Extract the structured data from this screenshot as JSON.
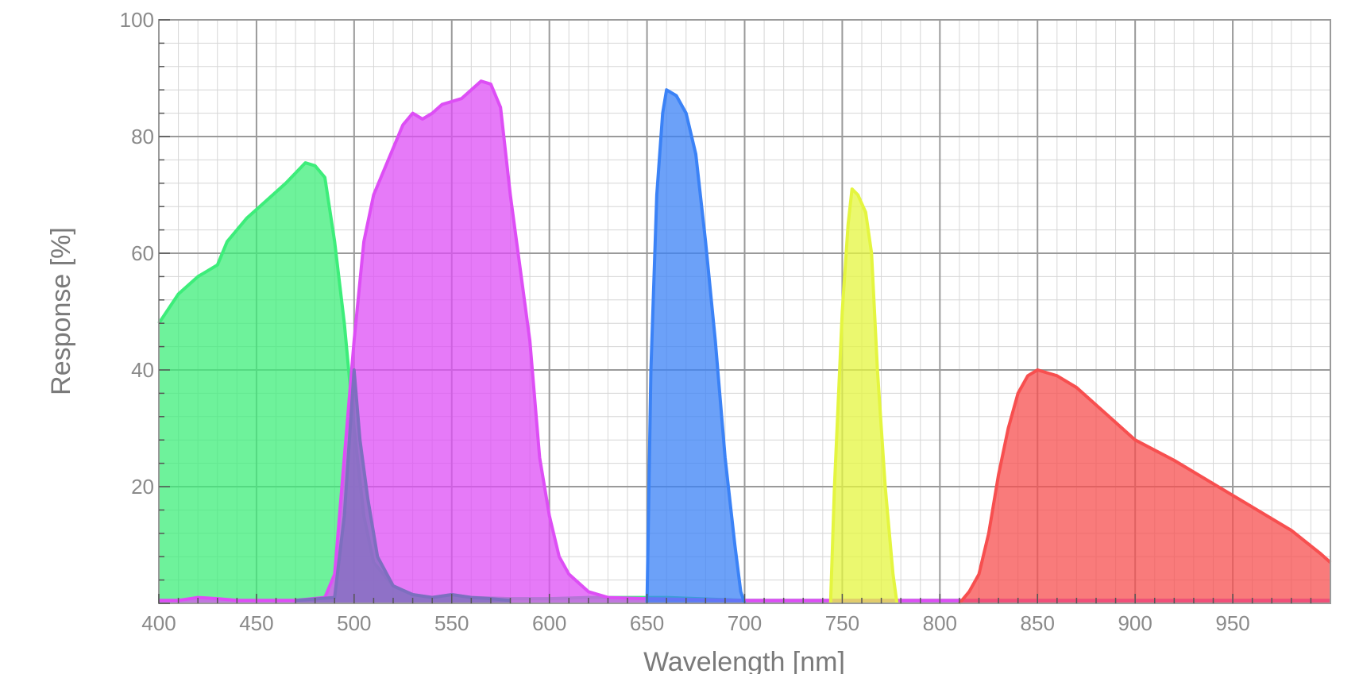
{
  "chart_data": {
    "type": "area",
    "title": "",
    "xlabel": "Wavelength [nm]",
    "ylabel": "Response [%]",
    "xlim": [
      400,
      1000
    ],
    "ylim": [
      0,
      100
    ],
    "x_ticks": [
      400,
      450,
      500,
      550,
      600,
      650,
      700,
      750,
      800,
      850,
      900,
      950
    ],
    "y_ticks": [
      20,
      40,
      60,
      80,
      100
    ],
    "grid": true,
    "legend": "none",
    "series": [
      {
        "color": "#3ded7a",
        "points": [
          [
            400,
            48
          ],
          [
            410,
            53
          ],
          [
            420,
            56
          ],
          [
            430,
            58
          ],
          [
            435,
            62
          ],
          [
            445,
            66
          ],
          [
            455,
            69
          ],
          [
            465,
            72
          ],
          [
            475,
            75.5
          ],
          [
            480,
            75
          ],
          [
            485,
            73
          ],
          [
            490,
            62
          ],
          [
            495,
            48
          ],
          [
            500,
            30
          ],
          [
            505,
            15
          ],
          [
            510,
            7
          ],
          [
            520,
            3
          ],
          [
            530,
            1.5
          ],
          [
            540,
            1
          ],
          [
            550,
            1.5
          ],
          [
            560,
            1
          ],
          [
            580,
            0.8
          ],
          [
            600,
            0.8
          ],
          [
            620,
            1
          ],
          [
            640,
            1
          ],
          [
            660,
            1
          ],
          [
            700,
            0.5
          ],
          [
            800,
            0.5
          ],
          [
            850,
            0.5
          ],
          [
            1000,
            0.5
          ]
        ]
      },
      {
        "color": "#dd4ef5",
        "points": [
          [
            400,
            0.5
          ],
          [
            410,
            0.5
          ],
          [
            420,
            1
          ],
          [
            430,
            0.8
          ],
          [
            440,
            0.5
          ],
          [
            470,
            0.5
          ],
          [
            485,
            1
          ],
          [
            490,
            5
          ],
          [
            495,
            25
          ],
          [
            500,
            45
          ],
          [
            505,
            62
          ],
          [
            510,
            70
          ],
          [
            520,
            78
          ],
          [
            525,
            82
          ],
          [
            530,
            84
          ],
          [
            535,
            83
          ],
          [
            540,
            84
          ],
          [
            545,
            85.5
          ],
          [
            555,
            86.5
          ],
          [
            560,
            88
          ],
          [
            565,
            89.5
          ],
          [
            570,
            89
          ],
          [
            575,
            85
          ],
          [
            580,
            70
          ],
          [
            590,
            45
          ],
          [
            595,
            25
          ],
          [
            600,
            15
          ],
          [
            605,
            8
          ],
          [
            610,
            5
          ],
          [
            620,
            2
          ],
          [
            630,
            1
          ],
          [
            650,
            0.8
          ],
          [
            700,
            0.5
          ],
          [
            800,
            0.5
          ],
          [
            1000,
            0.5
          ]
        ]
      },
      {
        "color": "#3b82f6",
        "points": [
          [
            650,
            0
          ],
          [
            652,
            40
          ],
          [
            655,
            70
          ],
          [
            658,
            84
          ],
          [
            660,
            88
          ],
          [
            665,
            87
          ],
          [
            670,
            84
          ],
          [
            675,
            77
          ],
          [
            680,
            62
          ],
          [
            685,
            45
          ],
          [
            690,
            25
          ],
          [
            695,
            10
          ],
          [
            698,
            2
          ],
          [
            700,
            0
          ]
        ]
      },
      {
        "color": "#e4f53f",
        "points": [
          [
            744,
            0
          ],
          [
            746,
            20
          ],
          [
            750,
            50
          ],
          [
            753,
            65
          ],
          [
            755,
            71
          ],
          [
            758,
            70
          ],
          [
            762,
            67
          ],
          [
            765,
            60
          ],
          [
            768,
            40
          ],
          [
            772,
            20
          ],
          [
            776,
            5
          ],
          [
            778,
            0
          ]
        ]
      },
      {
        "color": "#f74f4f",
        "points": [
          [
            810,
            0
          ],
          [
            815,
            2
          ],
          [
            820,
            5
          ],
          [
            825,
            12
          ],
          [
            830,
            22
          ],
          [
            835,
            30
          ],
          [
            840,
            36
          ],
          [
            845,
            39
          ],
          [
            850,
            40
          ],
          [
            860,
            39
          ],
          [
            870,
            37
          ],
          [
            880,
            34
          ],
          [
            890,
            31
          ],
          [
            900,
            28
          ],
          [
            920,
            24.5
          ],
          [
            940,
            20.5
          ],
          [
            960,
            16.5
          ],
          [
            980,
            12.5
          ],
          [
            995,
            8.5
          ],
          [
            1000,
            7
          ]
        ]
      },
      {
        "color": "#7d6fbf",
        "points": [
          [
            470,
            0.5
          ],
          [
            490,
            1
          ],
          [
            495,
            15
          ],
          [
            500,
            40
          ],
          [
            503,
            28
          ],
          [
            507,
            18
          ],
          [
            512,
            8
          ],
          [
            520,
            3
          ],
          [
            530,
            1.5
          ],
          [
            540,
            1
          ],
          [
            550,
            1.5
          ],
          [
            560,
            1
          ],
          [
            570,
            0.8
          ],
          [
            580,
            0.5
          ]
        ]
      }
    ]
  }
}
